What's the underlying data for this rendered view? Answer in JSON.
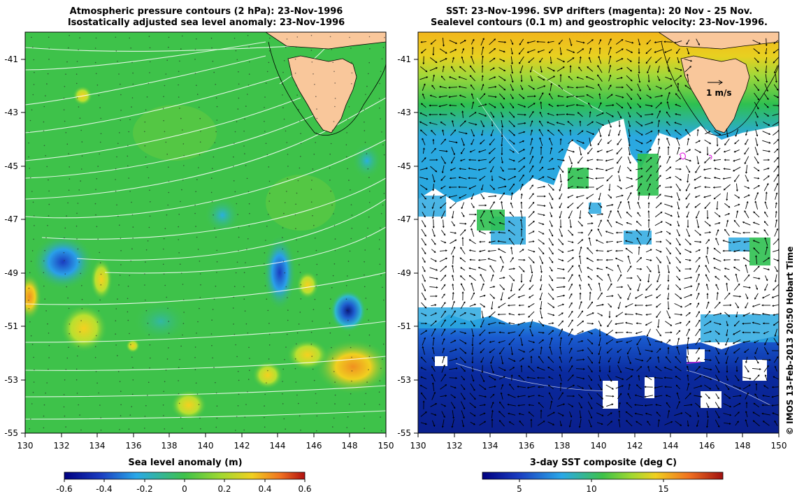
{
  "left_panel": {
    "title_line1": "Atmospheric pressure contours (2 hPa): 23-Nov-1996",
    "title_line2": "Isostatically adjusted sea level anomaly: 23-Nov-1996",
    "y_ticks": [
      "-41",
      "-43",
      "-45",
      "-47",
      "-49",
      "-51",
      "-53",
      "-55"
    ],
    "x_ticks": [
      "130",
      "132",
      "134",
      "136",
      "138",
      "140",
      "142",
      "144",
      "146",
      "148",
      "150"
    ],
    "colorbar": {
      "title": "Sea level anomaly (m)",
      "ticks": [
        "-0.6",
        "-0.4",
        "-0.2",
        "0",
        "0.2",
        "0.4",
        "0.6"
      ]
    }
  },
  "right_panel": {
    "title_line1": "SST: 23-Nov-1996. SVP drifters (magenta): 20 Nov - 25 Nov.",
    "title_line2": "Sealevel contours (0.1 m) and geostrophic velocity: 23-Nov-1996.",
    "velocity_scale_label": "1 m/s",
    "y_ticks": [
      "-41",
      "-43",
      "-45",
      "-47",
      "-49",
      "-51",
      "-53",
      "-55"
    ],
    "x_ticks": [
      "130",
      "132",
      "134",
      "136",
      "138",
      "140",
      "142",
      "144",
      "146",
      "148",
      "150"
    ],
    "colorbar": {
      "title": "3-day SST composite (deg C)",
      "ticks": [
        "5",
        "10",
        "15"
      ]
    }
  },
  "credit": "© IMOS 13-Feb-2013 20:50 Hobart Time",
  "colors": {
    "land": "#f9c79b",
    "sla_background": "#3ec24a",
    "sst_warm": "#f2b61c",
    "sst_cold": "#0a2a9e",
    "drifters": "#e020e0",
    "pressure_contours": "#ffffff"
  }
}
